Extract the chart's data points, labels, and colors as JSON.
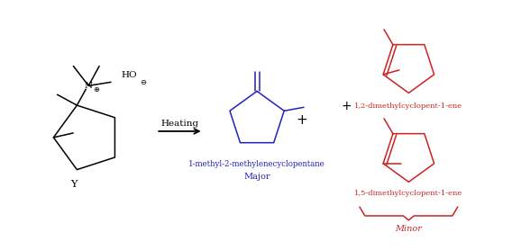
{
  "bg_color": "#ffffff",
  "arrow_color": "#000000",
  "rc": "#000000",
  "p1c": "#2222bb",
  "p2c": "#cc2222",
  "heating_text": "Heating",
  "label1a": "1-methyl-2-methylenecyclopentane",
  "label1b": "Major",
  "label2": "1,2-dimethylcyclopent-1-ene",
  "label3": "1,5-dimethylcyclopent-1-ene",
  "label3b": "Minor",
  "figsize": [
    5.88,
    2.78
  ],
  "dpi": 100
}
